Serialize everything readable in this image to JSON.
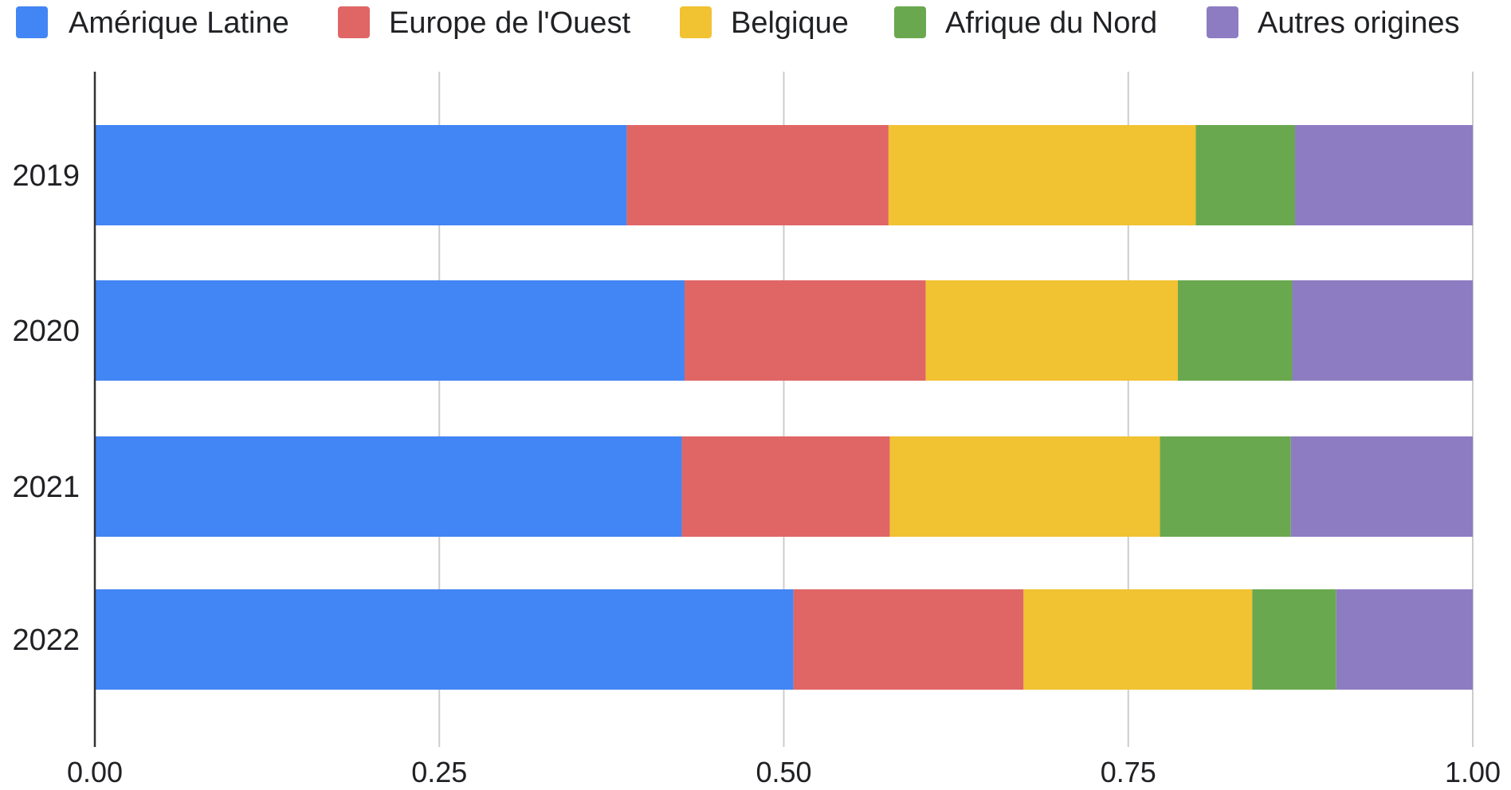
{
  "chart_data": {
    "type": "bar",
    "orientation": "horizontal",
    "stacked": true,
    "normalized": true,
    "categories": [
      "2019",
      "2020",
      "2021",
      "2022"
    ],
    "series": [
      {
        "name": "Amérique Latine",
        "color": "#4285F4",
        "values": [
          0.386,
          0.428,
          0.426,
          0.507
        ]
      },
      {
        "name": "Europe de l'Ouest",
        "color": "#E06666",
        "values": [
          0.19,
          0.175,
          0.151,
          0.167
        ]
      },
      {
        "name": "Belgique",
        "color": "#F1C232",
        "values": [
          0.223,
          0.183,
          0.196,
          0.166
        ]
      },
      {
        "name": "Afrique du Nord",
        "color": "#6AA84F",
        "values": [
          0.072,
          0.083,
          0.095,
          0.061
        ]
      },
      {
        "name": "Autres origines",
        "color": "#8E7CC3",
        "values": [
          0.129,
          0.131,
          0.132,
          0.099
        ]
      }
    ],
    "xlim": [
      0,
      1
    ],
    "xticks": [
      "0.00",
      "0.25",
      "0.50",
      "0.75",
      "1.00"
    ],
    "xtick_values": [
      0,
      0.25,
      0.5,
      0.75,
      1.0
    ],
    "grid": "vertical",
    "legend_position": "top"
  }
}
